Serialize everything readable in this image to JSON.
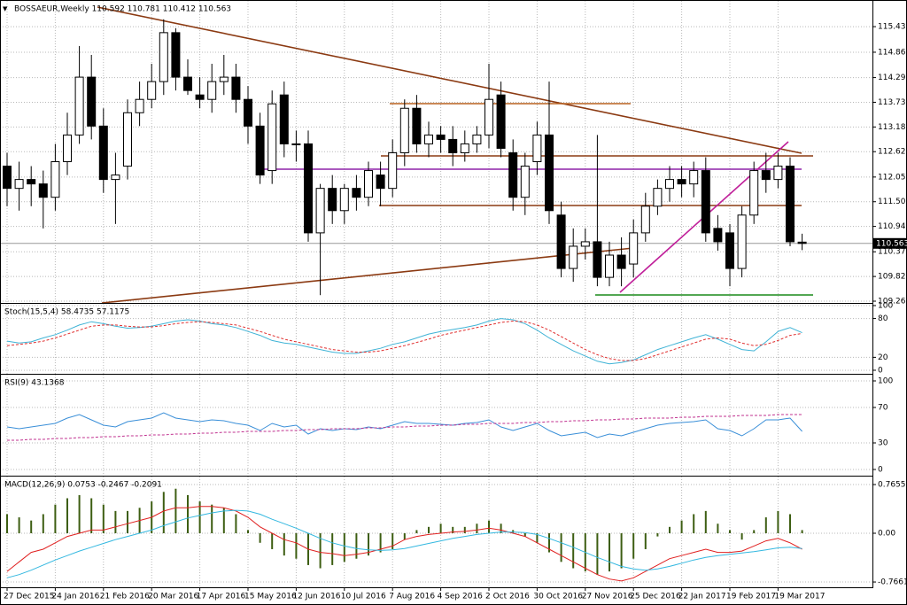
{
  "chart_data": [
    {
      "type": "candlestick",
      "title": "BOSSAEUR,Weekly  110.592 110.781 110.412 110.563",
      "categories": [
        "27 Dec 2015",
        null,
        null,
        null,
        "24 Jan 2016",
        null,
        null,
        null,
        "21 Feb 2016",
        null,
        null,
        null,
        "20 Mar 2016",
        null,
        null,
        null,
        "17 Apr 2016",
        null,
        null,
        null,
        "15 May 2016",
        null,
        null,
        null,
        "12 Jun 2016",
        null,
        null,
        null,
        "10 Jul 2016",
        null,
        null,
        null,
        "7 Aug 2016",
        null,
        null,
        null,
        "4 Sep 2016",
        null,
        null,
        null,
        "2 Oct 2016",
        null,
        null,
        null,
        "30 Oct 2016",
        null,
        null,
        null,
        "27 Nov 2016",
        null,
        null,
        null,
        "25 Dec 2016",
        null,
        null,
        null,
        "22 Jan 2017",
        null,
        null,
        null,
        "19 Feb 2017",
        null,
        null,
        null,
        "19 Mar 2017",
        null,
        null
      ],
      "open": [
        112.3,
        111.8,
        112.0,
        111.9,
        111.6,
        112.4,
        113.0,
        114.3,
        113.2,
        112.0,
        112.3,
        113.5,
        113.8,
        114.2,
        115.3,
        114.3,
        113.9,
        113.8,
        114.2,
        114.3,
        113.8,
        113.2,
        112.2,
        113.9,
        112.8,
        112.8,
        110.8,
        111.8,
        111.3,
        111.8,
        111.6,
        112.1,
        111.8,
        112.6,
        113.6,
        112.8,
        113.0,
        112.9,
        112.6,
        112.8,
        113.0,
        113.9,
        112.6,
        111.6,
        112.4,
        113.0,
        111.2,
        110.0,
        110.5,
        110.6,
        109.8,
        110.3,
        110.1,
        110.8,
        111.4,
        111.8,
        112.0,
        111.9,
        112.2,
        110.9,
        110.8,
        110.0,
        111.2,
        112.2,
        112.0,
        112.3,
        110.592
      ],
      "high": [
        112.6,
        112.4,
        112.3,
        112.2,
        112.8,
        113.5,
        115.0,
        114.8,
        113.6,
        112.6,
        113.8,
        114.2,
        114.6,
        115.6,
        115.4,
        114.7,
        114.3,
        114.6,
        114.8,
        114.6,
        114.1,
        113.5,
        114.0,
        114.2,
        113.1,
        113.1,
        111.9,
        112.1,
        111.9,
        112.1,
        112.4,
        112.4,
        112.9,
        113.8,
        113.9,
        113.3,
        113.2,
        113.2,
        113.1,
        113.2,
        114.6,
        114.2,
        112.9,
        112.6,
        113.3,
        114.2,
        111.5,
        110.9,
        110.9,
        113.0,
        110.6,
        110.7,
        111.1,
        111.7,
        112.0,
        112.3,
        112.3,
        112.4,
        112.5,
        111.2,
        111.0,
        111.4,
        112.4,
        112.6,
        112.6,
        112.5,
        110.781
      ],
      "low": [
        111.4,
        111.3,
        111.4,
        110.9,
        111.3,
        112.1,
        112.8,
        112.9,
        111.7,
        111.0,
        112.0,
        113.2,
        113.6,
        113.9,
        114.0,
        113.9,
        113.6,
        113.5,
        113.9,
        113.5,
        112.8,
        111.9,
        111.9,
        112.5,
        112.4,
        110.6,
        109.4,
        111.0,
        111.0,
        111.3,
        111.4,
        111.4,
        111.6,
        112.3,
        112.6,
        112.5,
        112.6,
        112.3,
        112.4,
        112.6,
        112.7,
        112.5,
        111.3,
        111.2,
        112.1,
        111.0,
        109.8,
        109.7,
        110.2,
        109.6,
        109.6,
        109.6,
        109.8,
        110.6,
        111.2,
        111.5,
        111.6,
        111.6,
        110.6,
        110.4,
        109.6,
        109.8,
        111.0,
        111.7,
        111.8,
        110.5,
        110.412
      ],
      "close": [
        111.8,
        112.0,
        111.9,
        111.6,
        112.4,
        113.0,
        114.3,
        113.2,
        112.0,
        112.1,
        113.5,
        113.8,
        114.2,
        115.3,
        114.3,
        114.0,
        113.8,
        114.2,
        114.3,
        113.8,
        113.2,
        112.1,
        113.7,
        112.8,
        112.8,
        110.8,
        111.8,
        111.3,
        111.8,
        111.6,
        112.2,
        111.8,
        112.6,
        113.6,
        112.8,
        113.0,
        112.9,
        112.6,
        112.8,
        113.0,
        113.8,
        112.7,
        111.6,
        112.3,
        113.0,
        111.3,
        110.0,
        110.5,
        110.6,
        109.8,
        110.3,
        110.0,
        110.8,
        111.4,
        111.8,
        112.0,
        111.9,
        112.2,
        110.8,
        110.6,
        110.0,
        111.2,
        112.2,
        112.0,
        112.3,
        110.6,
        110.563
      ],
      "last_price": 110.563,
      "ylim": [
        109.225,
        116.014
      ],
      "yticks": [
        115.435,
        {
          "value": 114.86,
          "label": "114.860"
        },
        {
          "value": 114.29,
          "label": "114.290"
        },
        113.735,
        {
          "value": 113.18,
          "label": "113.180"
        },
        112.625,
        112.055,
        {
          "value": 111.5,
          "label": "111.500"
        },
        110.945,
        110.375,
        {
          "value": 109.82,
          "label": "109.820"
        },
        109.265
      ],
      "grid": true
    },
    {
      "type": "line",
      "title": "Stoch(15,5,4) 58.4735 57.1175",
      "series": [
        {
          "color": "#3fb3d6",
          "style": "solid",
          "values": [
            45,
            42,
            44,
            50,
            55,
            62,
            70,
            75,
            72,
            68,
            65,
            66,
            68,
            72,
            76,
            78,
            76,
            72,
            70,
            66,
            60,
            54,
            46,
            42,
            40,
            36,
            32,
            28,
            26,
            26,
            30,
            34,
            40,
            44,
            50,
            56,
            60,
            63,
            66,
            70,
            76,
            80,
            78,
            72,
            62,
            50,
            40,
            30,
            22,
            14,
            10,
            12,
            16,
            24,
            32,
            38,
            44,
            50,
            55,
            48,
            40,
            32,
            30,
            44,
            60,
            66,
            58
          ]
        },
        {
          "color": "#e03030",
          "style": "dashed",
          "values": [
            38,
            40,
            42,
            45,
            50,
            56,
            62,
            68,
            70,
            70,
            68,
            67,
            67,
            69,
            72,
            74,
            75,
            74,
            72,
            70,
            65,
            60,
            54,
            48,
            44,
            40,
            36,
            32,
            30,
            28,
            28,
            30,
            34,
            38,
            43,
            48,
            54,
            58,
            62,
            66,
            70,
            74,
            76,
            75,
            70,
            62,
            52,
            42,
            32,
            24,
            18,
            15,
            15,
            18,
            24,
            30,
            36,
            42,
            48,
            50,
            48,
            42,
            38,
            40,
            46,
            54,
            57
          ]
        }
      ],
      "ylim": [
        -5.5,
        102.7
      ],
      "yticks": [
        100,
        80,
        20,
        0
      ]
    },
    {
      "type": "line",
      "title": "RSI(9) 43.1368",
      "series": [
        {
          "color": "#3a8fd8",
          "style": "solid",
          "values": [
            48,
            46,
            48,
            50,
            52,
            58,
            62,
            56,
            50,
            48,
            54,
            56,
            58,
            64,
            58,
            56,
            54,
            56,
            55,
            52,
            50,
            44,
            52,
            48,
            50,
            40,
            46,
            44,
            46,
            45,
            48,
            46,
            50,
            54,
            52,
            52,
            51,
            50,
            52,
            53,
            56,
            48,
            44,
            48,
            52,
            44,
            38,
            40,
            42,
            36,
            40,
            38,
            42,
            46,
            50,
            52,
            53,
            54,
            56,
            46,
            44,
            38,
            46,
            56,
            56,
            58,
            43
          ]
        },
        {
          "color": "#c0308f",
          "style": "dashed",
          "values": [
            33,
            33,
            34,
            34,
            35,
            35,
            36,
            36,
            37,
            37,
            38,
            38,
            39,
            39,
            40,
            40,
            41,
            41,
            42,
            42,
            43,
            43,
            43,
            44,
            44,
            45,
            45,
            46,
            46,
            46,
            47,
            47,
            48,
            48,
            49,
            49,
            50,
            50,
            51,
            51,
            52,
            52,
            52,
            53,
            53,
            54,
            54,
            55,
            55,
            56,
            56,
            57,
            57,
            58,
            58,
            58,
            59,
            59,
            60,
            60,
            60,
            61,
            61,
            61,
            62,
            62,
            62
          ]
        }
      ],
      "ylim": [
        -7,
        107
      ],
      "yticks": [
        100,
        70,
        30,
        0
      ]
    },
    {
      "type": "macd",
      "title": "MACD(12,26,9) 0.0753 -0.2467 -0.2091",
      "series": [
        {
          "kind": "bar",
          "color": "#3d5e12",
          "values": [
            0.3,
            0.25,
            0.2,
            0.3,
            0.45,
            0.55,
            0.6,
            0.55,
            0.45,
            0.35,
            0.35,
            0.4,
            0.5,
            0.65,
            0.7,
            0.6,
            0.5,
            0.45,
            0.4,
            0.3,
            0.05,
            -0.15,
            -0.25,
            -0.35,
            -0.4,
            -0.5,
            -0.55,
            -0.5,
            -0.45,
            -0.4,
            -0.35,
            -0.3,
            -0.25,
            -0.1,
            0.05,
            0.1,
            0.15,
            0.1,
            0.1,
            0.15,
            0.2,
            0.15,
            0.05,
            -0.05,
            -0.15,
            -0.3,
            -0.45,
            -0.55,
            -0.6,
            -0.65,
            -0.6,
            -0.55,
            -0.4,
            -0.25,
            -0.05,
            0.1,
            0.2,
            0.3,
            0.35,
            0.15,
            0.05,
            -0.1,
            0.05,
            0.25,
            0.35,
            0.3,
            0.05
          ]
        },
        {
          "kind": "line",
          "color": "#e02020",
          "values": [
            -0.6,
            -0.45,
            -0.3,
            -0.25,
            -0.15,
            -0.05,
            0.0,
            0.05,
            0.05,
            0.1,
            0.15,
            0.2,
            0.25,
            0.35,
            0.4,
            0.4,
            0.42,
            0.42,
            0.4,
            0.35,
            0.25,
            0.1,
            0.0,
            -0.1,
            -0.15,
            -0.25,
            -0.3,
            -0.32,
            -0.35,
            -0.33,
            -0.3,
            -0.25,
            -0.2,
            -0.1,
            -0.05,
            -0.02,
            0.0,
            0.02,
            0.03,
            0.05,
            0.08,
            0.05,
            0.0,
            -0.05,
            -0.15,
            -0.25,
            -0.35,
            -0.45,
            -0.55,
            -0.65,
            -0.72,
            -0.75,
            -0.7,
            -0.6,
            -0.5,
            -0.4,
            -0.35,
            -0.3,
            -0.25,
            -0.3,
            -0.3,
            -0.28,
            -0.2,
            -0.12,
            -0.08,
            -0.15,
            -0.25
          ]
        },
        {
          "kind": "line",
          "color": "#34b8e0",
          "values": [
            -0.7,
            -0.65,
            -0.58,
            -0.5,
            -0.42,
            -0.35,
            -0.28,
            -0.22,
            -0.16,
            -0.1,
            -0.05,
            0.0,
            0.05,
            0.12,
            0.18,
            0.24,
            0.28,
            0.32,
            0.35,
            0.36,
            0.35,
            0.3,
            0.22,
            0.15,
            0.08,
            0.0,
            -0.08,
            -0.15,
            -0.2,
            -0.24,
            -0.26,
            -0.27,
            -0.26,
            -0.24,
            -0.2,
            -0.16,
            -0.12,
            -0.08,
            -0.05,
            -0.02,
            0.0,
            0.02,
            0.02,
            0.01,
            -0.02,
            -0.08,
            -0.15,
            -0.22,
            -0.3,
            -0.38,
            -0.45,
            -0.52,
            -0.56,
            -0.58,
            -0.56,
            -0.52,
            -0.47,
            -0.42,
            -0.38,
            -0.35,
            -0.33,
            -0.31,
            -0.29,
            -0.26,
            -0.23,
            -0.22,
            -0.24
          ]
        }
      ],
      "ylim": [
        -0.849,
        0.891
      ],
      "yticks": [
        0.7655,
        {
          "value": 0,
          "label": "0.00"
        },
        -0.7661
      ]
    }
  ]
}
